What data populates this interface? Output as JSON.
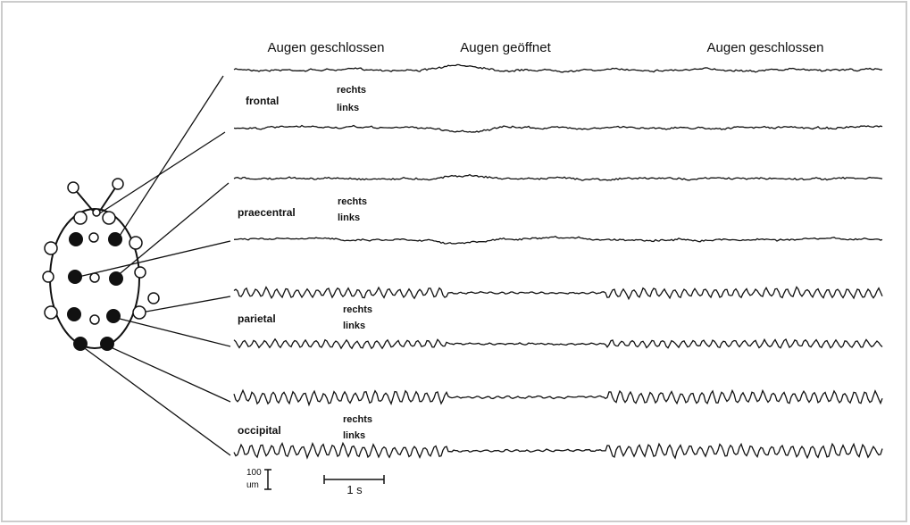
{
  "conditions": [
    "Augen geschlossen",
    "Augen geöffnet",
    "Augen geschlossen"
  ],
  "channels": [
    {
      "region": "frontal",
      "right": "rechts",
      "left": "links"
    },
    {
      "region": "praecentral",
      "right": "rechts",
      "left": "links"
    },
    {
      "region": "parietal",
      "right": "rechts",
      "left": "links"
    },
    {
      "region": "occipital",
      "right": "rechts",
      "left": "links"
    }
  ],
  "scale": {
    "amplitude": "100",
    "unit": "um",
    "time": "1 s"
  }
}
